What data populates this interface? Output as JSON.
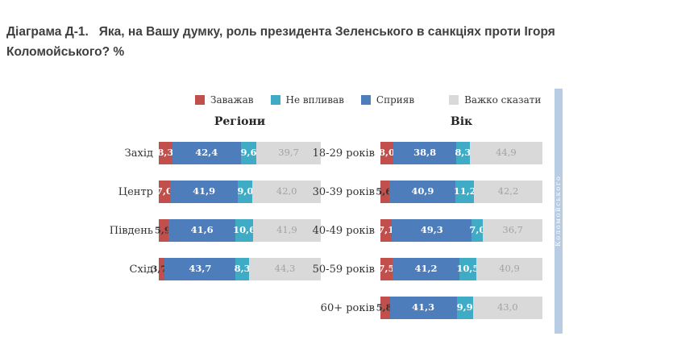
{
  "title": "Діаграма Д-1.   Яка, на Вашу думку, роль президента Зеленського в санкціях проти Ігоря Коломойського? %",
  "legend": [
    {
      "key": "hindered",
      "label": "Заважав",
      "color": "#C1504C"
    },
    {
      "key": "no-influence",
      "label": "Не впливав",
      "color": "#40ABC4"
    },
    {
      "key": "favored",
      "label": "Сприяв",
      "color": "#4D7EBB"
    },
    {
      "key": "hard-to-say",
      "label": "Важко сказати",
      "color": "#D9D9D9"
    }
  ],
  "side_strip": {
    "text": "Коломойського",
    "color": "#B8CCE4"
  },
  "chart_data": [
    {
      "type": "bar",
      "orientation": "horizontal",
      "stacked": true,
      "title": "Регіони",
      "xlim": [
        0,
        100
      ],
      "value_suffix": "%",
      "decimal_separator": ",",
      "categories": [
        "Захід",
        "Центр",
        "Південь",
        "Схід"
      ],
      "series": [
        {
          "key": "hindered",
          "name": "Заважав",
          "color": "#C1504C",
          "values": [
            8.3,
            7.0,
            5.9,
            3.7
          ]
        },
        {
          "key": "favored",
          "name": "Сприяв",
          "color": "#4D7EBB",
          "values": [
            42.4,
            41.9,
            41.6,
            43.7
          ]
        },
        {
          "key": "no-influence",
          "name": "Не впливав",
          "color": "#40ABC4",
          "values": [
            9.6,
            9.0,
            10.6,
            8.3
          ]
        },
        {
          "key": "hard-to-say",
          "name": "Важко сказати",
          "color": "#D9D9D9",
          "values": [
            39.7,
            42.0,
            41.9,
            44.3
          ]
        }
      ]
    },
    {
      "type": "bar",
      "orientation": "horizontal",
      "stacked": true,
      "title": "Вік",
      "xlim": [
        0,
        100
      ],
      "value_suffix": "%",
      "decimal_separator": ",",
      "categories": [
        "18-29 років",
        "30-39 років",
        "40-49 років",
        "50-59 років",
        "60+ років"
      ],
      "series": [
        {
          "key": "hindered",
          "name": "Заважав",
          "color": "#C1504C",
          "values": [
            8.0,
            5.6,
            7.1,
            7.5,
            5.8
          ]
        },
        {
          "key": "favored",
          "name": "Сприяв",
          "color": "#4D7EBB",
          "values": [
            38.8,
            40.9,
            49.3,
            41.2,
            41.3
          ]
        },
        {
          "key": "no-influence",
          "name": "Не впливав",
          "color": "#40ABC4",
          "values": [
            8.3,
            11.2,
            7.0,
            10.5,
            9.9
          ]
        },
        {
          "key": "hard-to-say",
          "name": "Важко сказати",
          "color": "#D9D9D9",
          "values": [
            44.9,
            42.2,
            36.7,
            40.9,
            43.0
          ]
        }
      ]
    }
  ]
}
